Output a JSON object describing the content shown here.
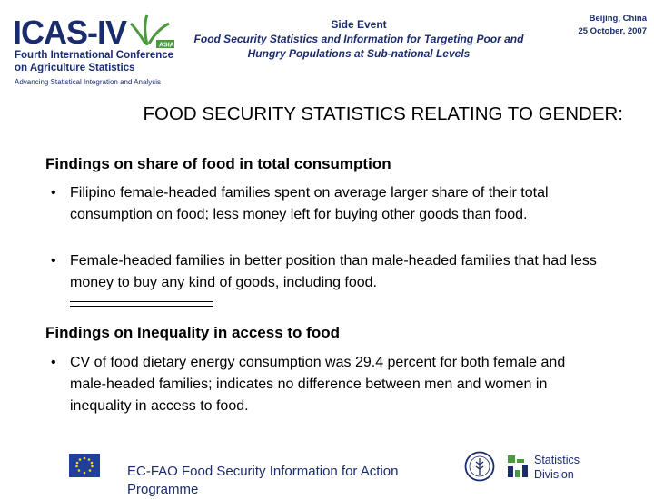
{
  "header": {
    "logo_text": "ICAS-IV",
    "logo_badge": "ASIA",
    "conference_line1": "Fourth International Conference",
    "conference_line2": "on Agriculture Statistics",
    "tagline": "Advancing Statistical Integration and Analysis",
    "side_event_kicker": "Side Event",
    "side_event_title": "Food Security Statistics and Information for Targeting Poor and Hungry Populations at Sub-national Levels",
    "place": "Beijing, China",
    "date": "25 October, 2007"
  },
  "slide": {
    "title": "FOOD SECURITY STATISTICS RELATING TO GENDER:",
    "sections": [
      {
        "heading": "Findings on share of food in total consumption",
        "bullets": [
          "Filipino female-headed families spent on average  larger share of their total consumption on food; less money left for buying other goods than food.",
          "Female-headed families in better position than male-headed families that had less money to buy any kind of goods, including food."
        ]
      },
      {
        "heading": "Findings on Inequality in access to food",
        "bullets": [
          "CV of food dietary energy consumption was 29.4 percent for both female and male-headed families; indicates no difference between men and women in inequality in access to food."
        ]
      }
    ],
    "bullet_symbol": "•"
  },
  "footer": {
    "programme": "EC-FAO Food Security Information for Action Programme",
    "stats_line1": "Statistics",
    "stats_line2": "Division"
  },
  "colors": {
    "brand_navy": "#1b2c6e",
    "brand_green": "#4a9a3c",
    "eu_blue": "#1f3f9a",
    "eu_star": "#ffd400"
  }
}
